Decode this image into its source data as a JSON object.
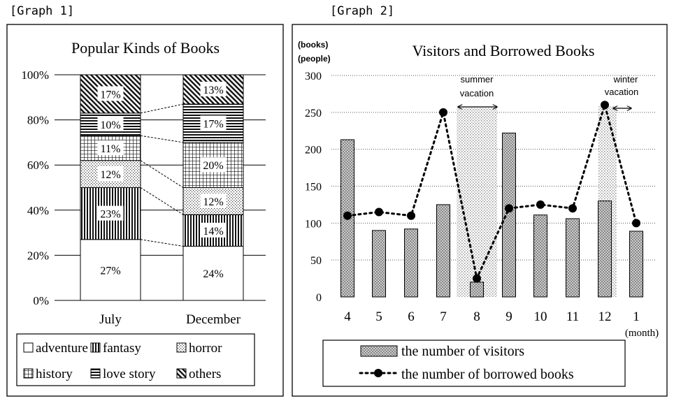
{
  "graph1_caption": "[Graph 1]",
  "graph2_caption": "[Graph 2]",
  "chart_data": [
    {
      "type": "bar",
      "stacked": true,
      "title": "Popular Kinds of Books",
      "categories": [
        "July",
        "December"
      ],
      "y_ticks": [
        "0%",
        "20%",
        "40%",
        "60%",
        "80%",
        "100%"
      ],
      "ylim": [
        0,
        100
      ],
      "grid": true,
      "legend_position": "bottom",
      "series": [
        {
          "name": "adventure",
          "values": [
            27,
            24
          ],
          "labels": [
            "27%",
            "24%"
          ],
          "pattern": "plain"
        },
        {
          "name": "fantasy",
          "values": [
            23,
            14
          ],
          "labels": [
            "23%",
            "14%"
          ],
          "pattern": "vertical"
        },
        {
          "name": "horror",
          "values": [
            12,
            12
          ],
          "labels": [
            "12%",
            "12%"
          ],
          "pattern": "dots"
        },
        {
          "name": "history",
          "values": [
            11,
            20
          ],
          "labels": [
            "11%",
            "20%"
          ],
          "pattern": "grid"
        },
        {
          "name": "love story",
          "values": [
            10,
            17
          ],
          "labels": [
            "10%",
            "17%"
          ],
          "pattern": "horizontal"
        },
        {
          "name": "others",
          "values": [
            17,
            13
          ],
          "labels": [
            "17%",
            "13%"
          ],
          "pattern": "diagonal"
        }
      ]
    },
    {
      "type": "bar+line",
      "title": "Visitors and Borrowed Books",
      "y_unit_labels": [
        "(books)",
        "(people)"
      ],
      "x_unit_label": "(month)",
      "categories": [
        "4",
        "5",
        "6",
        "7",
        "8",
        "9",
        "10",
        "11",
        "12",
        "1"
      ],
      "y_ticks": [
        "0",
        "50",
        "100",
        "150",
        "200",
        "250",
        "300"
      ],
      "ylim": [
        0,
        300
      ],
      "grid": true,
      "legend_position": "bottom",
      "series": [
        {
          "name": "the number of visitors",
          "type": "bar",
          "values": [
            213,
            90,
            92,
            125,
            20,
            222,
            111,
            106,
            130,
            89
          ]
        },
        {
          "name": "the number of borrowed books",
          "type": "line",
          "values": [
            110,
            115,
            110,
            250,
            25,
            120,
            125,
            120,
            260,
            100
          ]
        }
      ],
      "annotations": [
        {
          "text": [
            "summer",
            "vacation"
          ],
          "from": "8"
        },
        {
          "text": [
            "winter",
            "vacation"
          ],
          "from": "12"
        }
      ]
    }
  ]
}
